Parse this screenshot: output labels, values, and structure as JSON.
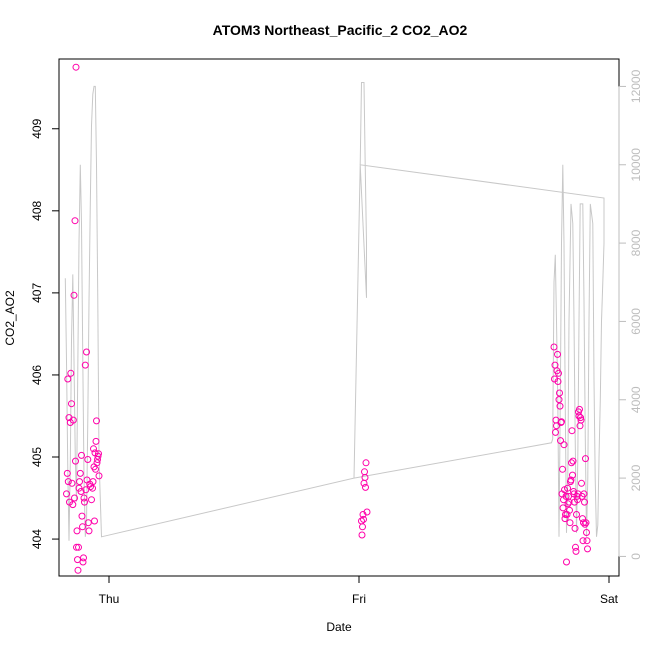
{
  "colors": {
    "points": "#ff00aa",
    "line": "#c8c8c8",
    "axis": "#000000",
    "right_axis": "#bdbdbd"
  },
  "chart_data": {
    "type": "scatter",
    "title": "ATOM3 Northeast_Pacific_2 CO2_AO2",
    "xlabel": "Date",
    "ylabel": "CO2_AO2",
    "x_tick_labels": [
      "Thu",
      "Fri",
      "Sat"
    ],
    "xlim": [
      -0.2,
      2.04
    ],
    "y_left": {
      "lim": [
        403.55,
        409.85
      ],
      "ticks": [
        404,
        405,
        406,
        407,
        408,
        409
      ]
    },
    "y_right": {
      "lim": [
        -500,
        12700
      ],
      "ticks": [
        0,
        2000,
        4000,
        6000,
        8000,
        10000,
        12000
      ]
    },
    "grid": false,
    "legend": "none",
    "series": [
      {
        "type": "points",
        "axis": "left",
        "points": [
          [
            -0.17,
            404.55
          ],
          [
            -0.167,
            404.8
          ],
          [
            -0.165,
            405.95
          ],
          [
            -0.163,
            404.7
          ],
          [
            -0.16,
            405.48
          ],
          [
            -0.158,
            404.45
          ],
          [
            -0.155,
            405.42
          ],
          [
            -0.153,
            406.02
          ],
          [
            -0.15,
            405.65
          ],
          [
            -0.148,
            404.68
          ],
          [
            -0.145,
            404.42
          ],
          [
            -0.143,
            405.45
          ],
          [
            -0.14,
            406.97
          ],
          [
            -0.138,
            404.5
          ],
          [
            -0.136,
            407.88
          ],
          [
            -0.134,
            404.95
          ],
          [
            -0.132,
            409.75
          ],
          [
            -0.13,
            403.9
          ],
          [
            -0.128,
            404.1
          ],
          [
            -0.126,
            403.75
          ],
          [
            -0.124,
            403.62
          ],
          [
            -0.122,
            403.9
          ],
          [
            -0.12,
            404.62
          ],
          [
            -0.118,
            404.7
          ],
          [
            -0.115,
            404.8
          ],
          [
            -0.112,
            404.58
          ],
          [
            -0.11,
            405.02
          ],
          [
            -0.108,
            404.28
          ],
          [
            -0.106,
            404.15
          ],
          [
            -0.104,
            403.72
          ],
          [
            -0.102,
            403.77
          ],
          [
            -0.1,
            404.5
          ],
          [
            -0.098,
            404.45
          ],
          [
            -0.095,
            406.12
          ],
          [
            -0.093,
            404.6
          ],
          [
            -0.09,
            406.28
          ],
          [
            -0.088,
            404.72
          ],
          [
            -0.085,
            404.97
          ],
          [
            -0.083,
            404.2
          ],
          [
            -0.08,
            404.1
          ],
          [
            -0.077,
            404.67
          ],
          [
            -0.074,
            404.64
          ],
          [
            -0.07,
            404.48
          ],
          [
            -0.066,
            404.62
          ],
          [
            -0.064,
            404.7
          ],
          [
            -0.062,
            405.1
          ],
          [
            -0.06,
            404.88
          ],
          [
            -0.058,
            404.22
          ],
          [
            -0.056,
            405.05
          ],
          [
            -0.054,
            404.85
          ],
          [
            -0.052,
            405.19
          ],
          [
            -0.05,
            405.44
          ],
          [
            -0.048,
            404.93
          ],
          [
            -0.046,
            404.97
          ],
          [
            -0.044,
            405.01
          ],
          [
            -0.042,
            405.04
          ],
          [
            -0.04,
            404.77
          ],
          [
            1.01,
            404.22
          ],
          [
            1.012,
            404.05
          ],
          [
            1.014,
            404.15
          ],
          [
            1.016,
            404.3
          ],
          [
            1.018,
            404.24
          ],
          [
            1.02,
            404.68
          ],
          [
            1.022,
            404.82
          ],
          [
            1.024,
            404.75
          ],
          [
            1.026,
            404.63
          ],
          [
            1.028,
            404.93
          ],
          [
            1.032,
            404.33
          ],
          [
            1.78,
            406.34
          ],
          [
            1.782,
            405.95
          ],
          [
            1.784,
            406.12
          ],
          [
            1.786,
            405.3
          ],
          [
            1.788,
            405.45
          ],
          [
            1.79,
            405.38
          ],
          [
            1.792,
            406.05
          ],
          [
            1.794,
            406.25
          ],
          [
            1.796,
            405.92
          ],
          [
            1.798,
            406.02
          ],
          [
            1.8,
            405.7
          ],
          [
            1.802,
            405.78
          ],
          [
            1.804,
            405.62
          ],
          [
            1.806,
            405.2
          ],
          [
            1.808,
            405.42
          ],
          [
            1.81,
            405.43
          ],
          [
            1.812,
            404.55
          ],
          [
            1.814,
            404.85
          ],
          [
            1.816,
            404.38
          ],
          [
            1.818,
            404.48
          ],
          [
            1.82,
            405.15
          ],
          [
            1.822,
            404.6
          ],
          [
            1.824,
            404.25
          ],
          [
            1.826,
            404.3
          ],
          [
            1.828,
            404.52
          ],
          [
            1.83,
            403.72
          ],
          [
            1.832,
            404.3
          ],
          [
            1.834,
            404.62
          ],
          [
            1.836,
            404.43
          ],
          [
            1.838,
            404.52
          ],
          [
            1.84,
            404.45
          ],
          [
            1.842,
            404.35
          ],
          [
            1.844,
            404.2
          ],
          [
            1.846,
            404.7
          ],
          [
            1.848,
            404.72
          ],
          [
            1.85,
            404.93
          ],
          [
            1.852,
            405.32
          ],
          [
            1.854,
            404.78
          ],
          [
            1.856,
            404.95
          ],
          [
            1.858,
            404.58
          ],
          [
            1.86,
            404.55
          ],
          [
            1.862,
            404.45
          ],
          [
            1.864,
            404.13
          ],
          [
            1.866,
            403.9
          ],
          [
            1.868,
            403.85
          ],
          [
            1.87,
            404.3
          ],
          [
            1.872,
            404.52
          ],
          [
            1.874,
            404.48
          ],
          [
            1.876,
            404.55
          ],
          [
            1.878,
            405.55
          ],
          [
            1.88,
            405.5
          ],
          [
            1.882,
            405.58
          ],
          [
            1.884,
            405.38
          ],
          [
            1.886,
            405.48
          ],
          [
            1.888,
            405.45
          ],
          [
            1.89,
            404.68
          ],
          [
            1.892,
            404.52
          ],
          [
            1.894,
            404.25
          ],
          [
            1.896,
            403.98
          ],
          [
            1.898,
            404.2
          ],
          [
            1.9,
            404.55
          ],
          [
            1.902,
            404.45
          ],
          [
            1.904,
            404.18
          ],
          [
            1.906,
            404.98
          ],
          [
            1.908,
            404.2
          ],
          [
            1.91,
            404.08
          ],
          [
            1.912,
            403.98
          ],
          [
            1.914,
            403.88
          ]
        ]
      },
      {
        "type": "line",
        "axis": "right",
        "points": [
          [
            -0.175,
            7100
          ],
          [
            -0.17,
            5000
          ],
          [
            -0.165,
            2200
          ],
          [
            -0.16,
            400
          ],
          [
            -0.155,
            2400
          ],
          [
            -0.15,
            5500
          ],
          [
            -0.145,
            7200
          ],
          [
            -0.14,
            5000
          ],
          [
            -0.135,
            2500
          ],
          [
            -0.13,
            1400
          ],
          [
            -0.125,
            4800
          ],
          [
            -0.12,
            8000
          ],
          [
            -0.115,
            10000
          ],
          [
            -0.11,
            8500
          ],
          [
            -0.105,
            5000
          ],
          [
            -0.1,
            2000
          ],
          [
            -0.095,
            500
          ],
          [
            -0.09,
            800
          ],
          [
            -0.085,
            3500
          ],
          [
            -0.08,
            6500
          ],
          [
            -0.075,
            9000
          ],
          [
            -0.07,
            11000
          ],
          [
            -0.065,
            11800
          ],
          [
            -0.06,
            12000
          ],
          [
            -0.055,
            12000
          ],
          [
            -0.05,
            10000
          ],
          [
            -0.045,
            6500
          ],
          [
            -0.04,
            2500
          ],
          [
            -0.03,
            500
          ],
          [
            0.98,
            2000
          ],
          [
            1.005,
            10000
          ],
          [
            1.01,
            12100
          ],
          [
            1.02,
            12100
          ],
          [
            1.025,
            10000
          ],
          [
            1.03,
            8000
          ],
          [
            1.03,
            6600
          ],
          [
            1.005,
            10000
          ],
          [
            1.98,
            9150
          ],
          [
            1.98,
            8000
          ],
          [
            1.975,
            7000
          ],
          [
            1.97,
            6000
          ],
          [
            1.965,
            4000
          ],
          [
            1.96,
            2500
          ],
          [
            1.955,
            800
          ],
          [
            1.95,
            500
          ],
          [
            1.945,
            2000
          ],
          [
            1.94,
            4500
          ],
          [
            1.935,
            8500
          ],
          [
            1.925,
            9000
          ],
          [
            1.92,
            6000
          ],
          [
            1.915,
            2000
          ],
          [
            1.91,
            500
          ],
          [
            1.905,
            3000
          ],
          [
            1.9,
            6500
          ],
          [
            1.895,
            9000
          ],
          [
            1.885,
            9000
          ],
          [
            1.88,
            6000
          ],
          [
            1.875,
            2500
          ],
          [
            1.87,
            600
          ],
          [
            1.865,
            3000
          ],
          [
            1.86,
            6000
          ],
          [
            1.855,
            8500
          ],
          [
            1.848,
            9000
          ],
          [
            1.84,
            6000
          ],
          [
            1.835,
            2000
          ],
          [
            1.83,
            600
          ],
          [
            1.825,
            4000
          ],
          [
            1.82,
            8000
          ],
          [
            1.815,
            10000
          ],
          [
            1.81,
            8000
          ],
          [
            1.805,
            4000
          ],
          [
            1.8,
            500
          ],
          [
            1.795,
            4000
          ],
          [
            1.79,
            6000
          ],
          [
            1.785,
            7700
          ],
          [
            1.78,
            7000
          ],
          [
            1.775,
            3000
          ],
          [
            1.77,
            2900
          ],
          [
            0.98,
            2000
          ]
        ]
      }
    ]
  }
}
